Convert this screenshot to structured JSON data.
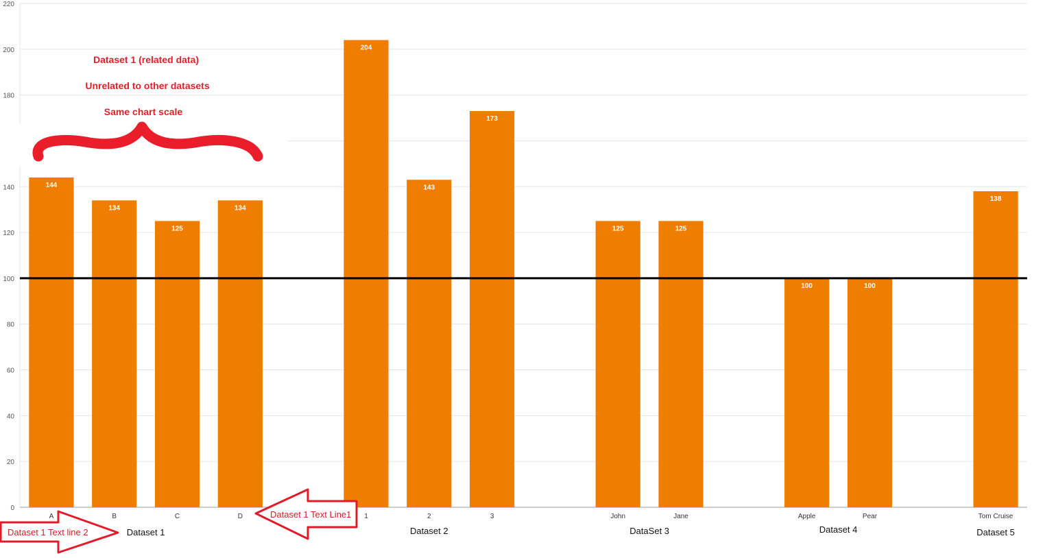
{
  "chart_data": {
    "type": "bar",
    "title": "",
    "xlabel": "",
    "ylabel": "",
    "ylim": [
      0,
      220
    ],
    "yticks": [
      0,
      20,
      40,
      60,
      80,
      100,
      120,
      140,
      160,
      180,
      200,
      220
    ],
    "grid": true,
    "legend": "none",
    "reference_line": 100,
    "colors": {
      "bar": "#ef7d00",
      "reference_line": "#000000",
      "annotation": "#e0202a"
    },
    "groups": [
      {
        "name": "Dataset 1",
        "categories": [
          "A",
          "B",
          "C",
          "D"
        ],
        "values": [
          144,
          134,
          125,
          134
        ]
      },
      {
        "name": "Dataset 2",
        "categories": [
          "1",
          "2",
          "3"
        ],
        "values": [
          204,
          143,
          173
        ]
      },
      {
        "name": "DataSet 3",
        "categories": [
          "John",
          "Jane"
        ],
        "values": [
          125,
          125
        ]
      },
      {
        "name": "Dataset 4",
        "categories": [
          "Apple",
          "Pear"
        ],
        "values": [
          100,
          100
        ]
      },
      {
        "name": "Dataset 5",
        "categories": [
          "Tom Cruise"
        ],
        "values": [
          138
        ]
      }
    ],
    "annotations": {
      "brace_notes": [
        "Dataset 1 (related data)",
        "Unrelated to other datasets",
        "Same chart scale"
      ],
      "arrow_right_text": "Dataset 1 Text line 2",
      "arrow_left_text": "Dataset 1 Text Line1"
    }
  }
}
